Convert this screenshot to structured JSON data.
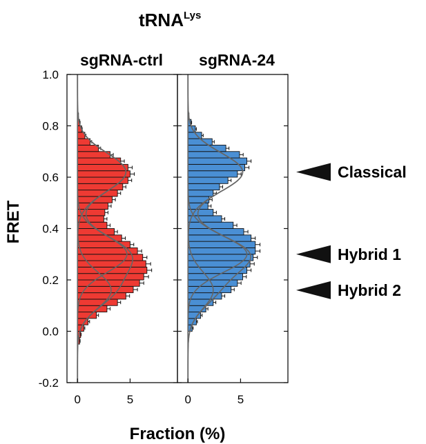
{
  "chart_data": {
    "type": "bar",
    "title": "tRNA",
    "title_superscript": "Lys",
    "ylabel": "FRET",
    "xlabel": "Fraction (%)",
    "ylim": [
      -0.2,
      1.0
    ],
    "yticks": [
      "-0.2",
      "0.0",
      "0.2",
      "0.4",
      "0.6",
      "0.8",
      "1.0"
    ],
    "ytick_values": [
      -0.2,
      0.0,
      0.2,
      0.4,
      0.6,
      0.8,
      1.0
    ],
    "xlim": [
      -1,
      9.5
    ],
    "xticks": [
      "0",
      "5"
    ],
    "xtick_values": [
      0,
      5
    ],
    "orientation": "horizontal",
    "grid": false,
    "bins": [
      -0.2,
      -0.175,
      -0.15,
      -0.125,
      -0.1,
      -0.075,
      -0.05,
      -0.025,
      0.0,
      0.025,
      0.05,
      0.075,
      0.1,
      0.125,
      0.15,
      0.175,
      0.2,
      0.225,
      0.25,
      0.275,
      0.3,
      0.325,
      0.35,
      0.375,
      0.4,
      0.425,
      0.45,
      0.475,
      0.5,
      0.525,
      0.55,
      0.575,
      0.6,
      0.625,
      0.65,
      0.675,
      0.7,
      0.725,
      0.75,
      0.775,
      0.8,
      0.825,
      0.85,
      0.875,
      0.9,
      0.925,
      0.95,
      0.975
    ],
    "series": [
      {
        "name": "sgRNA-ctrl",
        "color": "#ee3a33",
        "values": [
          0.0,
          0.0,
          0.0,
          0.0,
          0.0,
          0.0,
          0.2,
          0.3,
          0.6,
          1.0,
          1.8,
          2.8,
          3.8,
          4.6,
          5.3,
          5.9,
          6.3,
          6.6,
          6.5,
          6.2,
          5.7,
          5.0,
          4.2,
          3.5,
          2.8,
          2.5,
          2.6,
          2.9,
          3.3,
          3.8,
          4.3,
          4.8,
          5.0,
          4.8,
          4.1,
          3.1,
          2.0,
          1.2,
          0.7,
          0.4,
          0.2,
          0.1,
          0.0,
          0.0,
          0.0,
          0.0,
          0.0,
          0.0
        ],
        "errors": [
          0.0,
          0.0,
          0.0,
          0.0,
          0.0,
          0.0,
          0.05,
          0.05,
          0.1,
          0.15,
          0.2,
          0.3,
          0.3,
          0.35,
          0.4,
          0.4,
          0.45,
          0.45,
          0.45,
          0.4,
          0.4,
          0.35,
          0.35,
          0.3,
          0.3,
          0.3,
          0.3,
          0.3,
          0.3,
          0.3,
          0.3,
          0.35,
          0.4,
          0.4,
          0.35,
          0.3,
          0.2,
          0.15,
          0.1,
          0.05,
          0.05,
          0.0,
          0.0,
          0.0,
          0.0,
          0.0,
          0.0,
          0.0
        ]
      },
      {
        "name": "sgRNA-24",
        "color": "#4a8fd4",
        "values": [
          0.0,
          0.0,
          0.0,
          0.0,
          0.0,
          0.0,
          0.0,
          0.0,
          0.4,
          0.8,
          1.2,
          1.7,
          2.4,
          3.2,
          4.1,
          4.7,
          5.2,
          5.6,
          5.9,
          6.2,
          6.4,
          6.4,
          6.0,
          5.3,
          4.3,
          3.2,
          2.4,
          1.9,
          2.0,
          2.4,
          3.0,
          3.8,
          4.7,
          5.4,
          5.6,
          4.9,
          3.6,
          2.3,
          1.3,
          0.7,
          0.3,
          0.1,
          0.0,
          0.0,
          0.0,
          0.0,
          0.0,
          0.0
        ],
        "errors": [
          0.0,
          0.0,
          0.0,
          0.0,
          0.0,
          0.0,
          0.0,
          0.0,
          0.1,
          0.1,
          0.15,
          0.2,
          0.25,
          0.3,
          0.3,
          0.35,
          0.35,
          0.4,
          0.4,
          0.4,
          0.45,
          0.45,
          0.4,
          0.4,
          0.35,
          0.3,
          0.3,
          0.3,
          0.3,
          0.3,
          0.3,
          0.3,
          0.35,
          0.4,
          0.4,
          0.35,
          0.3,
          0.2,
          0.15,
          0.1,
          0.05,
          0.0,
          0.0,
          0.0,
          0.0,
          0.0,
          0.0,
          0.0
        ]
      }
    ],
    "fit_components": [
      {
        "name": "Classical",
        "mu": 0.62,
        "sigma": 0.075
      },
      {
        "name": "Hybrid 1",
        "mu": 0.3,
        "sigma": 0.07
      },
      {
        "name": "Hybrid 2",
        "mu": 0.16,
        "sigma": 0.07
      }
    ],
    "fit_amplitudes": [
      [
        4.6,
        4.7,
        3.2
      ],
      [
        5.2,
        5.6,
        2.4
      ]
    ],
    "fit_color": "#666666",
    "annotations": [
      {
        "label": "Classical",
        "fret": 0.62
      },
      {
        "label": "Hybrid 1",
        "fret": 0.3
      },
      {
        "label": "Hybrid 2",
        "fret": 0.16
      }
    ]
  }
}
